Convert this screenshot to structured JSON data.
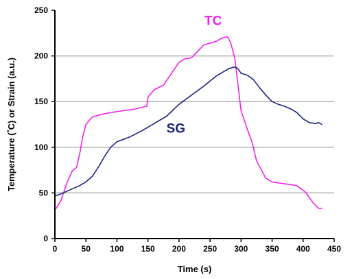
{
  "chart_data": {
    "type": "line",
    "title": "",
    "xlabel": "Time (s)",
    "ylabel": "Temperature (°C) or Strain (a.u.)",
    "xlim": [
      0,
      450
    ],
    "ylim": [
      0,
      250
    ],
    "xticks": [
      0,
      50,
      100,
      150,
      200,
      250,
      300,
      350,
      400,
      450
    ],
    "yticks": [
      0,
      50,
      100,
      150,
      200,
      250
    ],
    "grid": {
      "horizontal_at": [
        50,
        100,
        150,
        200
      ],
      "color": "#b0b0b0"
    },
    "legend": "none (series labelled directly on the plot)",
    "series": [
      {
        "name": "TC",
        "color": "#ee22ee",
        "x": [
          2,
          10,
          20,
          28,
          35,
          40,
          45,
          50,
          60,
          75,
          90,
          110,
          130,
          148,
          150,
          160,
          175,
          190,
          200,
          210,
          220,
          240,
          260,
          270,
          278,
          283,
          290,
          300,
          310,
          318,
          325,
          340,
          350,
          370,
          390,
          405,
          415,
          425,
          430
        ],
        "y": [
          33,
          42,
          62,
          74,
          78,
          93,
          112,
          125,
          133,
          136,
          138,
          140,
          142,
          145,
          155,
          163,
          168,
          183,
          193,
          197,
          198,
          212,
          216,
          220,
          221,
          215,
          197,
          140,
          120,
          105,
          85,
          66,
          62,
          60,
          58,
          50,
          40,
          33,
          33
        ]
      },
      {
        "name": "SG",
        "color": "#1a237e",
        "x": [
          2,
          10,
          20,
          30,
          40,
          50,
          60,
          70,
          80,
          90,
          100,
          120,
          140,
          160,
          180,
          200,
          220,
          240,
          260,
          280,
          290,
          295,
          300,
          310,
          320,
          330,
          340,
          350,
          360,
          370,
          380,
          390,
          400,
          410,
          420,
          425,
          430
        ],
        "y": [
          47,
          49,
          52,
          55,
          58,
          62,
          68,
          78,
          90,
          100,
          106,
          111,
          118,
          126,
          134,
          147,
          157,
          167,
          178,
          186,
          188,
          186,
          181,
          179,
          174,
          165,
          157,
          150,
          147,
          145,
          142,
          138,
          131,
          127,
          126,
          127,
          125
        ]
      }
    ]
  }
}
